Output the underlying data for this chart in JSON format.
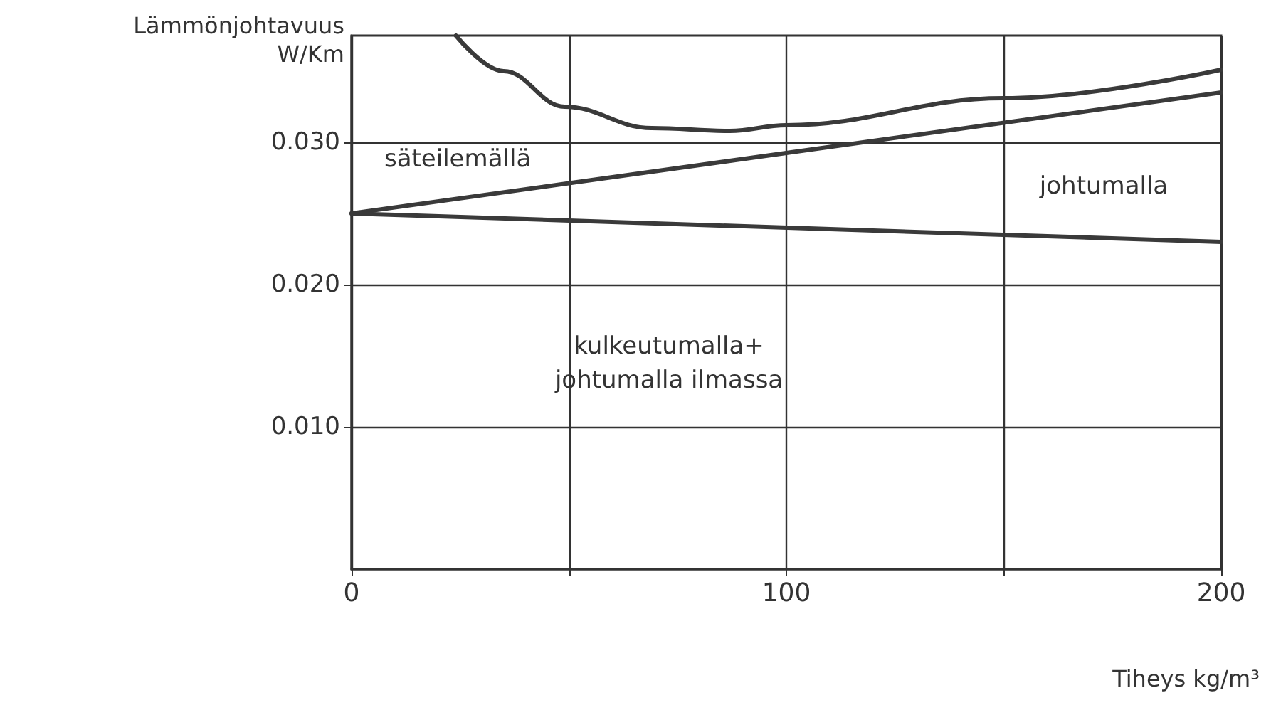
{
  "chart_data": {
    "type": "line",
    "xlabel": "Tiheys kg/m³",
    "ylabel": "Lämmönjohtavuus\nW/Km",
    "xlim": [
      0,
      200
    ],
    "xticks": [
      0,
      {
        "value": 50,
        "label": null
      },
      100,
      {
        "value": 150,
        "label": null
      },
      200
    ],
    "ylim": [
      0,
      0.0375
    ],
    "yticks": [
      {
        "value": 0.01,
        "label": "0.010"
      },
      {
        "value": 0.02,
        "label": "0.020"
      },
      {
        "value": 0.03,
        "label": "0.030"
      }
    ],
    "grid": true,
    "marker": "none",
    "line_style": "solid",
    "series": [
      {
        "color": "#3a3a3a",
        "x": [
          24,
          35,
          49,
          69,
          87,
          100,
          150,
          200
        ],
        "values": [
          0.0375,
          0.035,
          0.0325,
          0.031,
          0.0308,
          0.0312,
          0.0331,
          0.0351
        ]
      },
      {
        "color": "#3a3a3a",
        "x": [
          0,
          200
        ],
        "values": [
          0.025,
          0.0335
        ]
      },
      {
        "color": "#3a3a3a",
        "x": [
          0,
          200
        ],
        "values": [
          0.025,
          0.023
        ]
      }
    ],
    "annotations": [
      "säteilemällä",
      "johtumalla",
      "kulkeutumalla+\njohtumalla ilmassa"
    ]
  }
}
